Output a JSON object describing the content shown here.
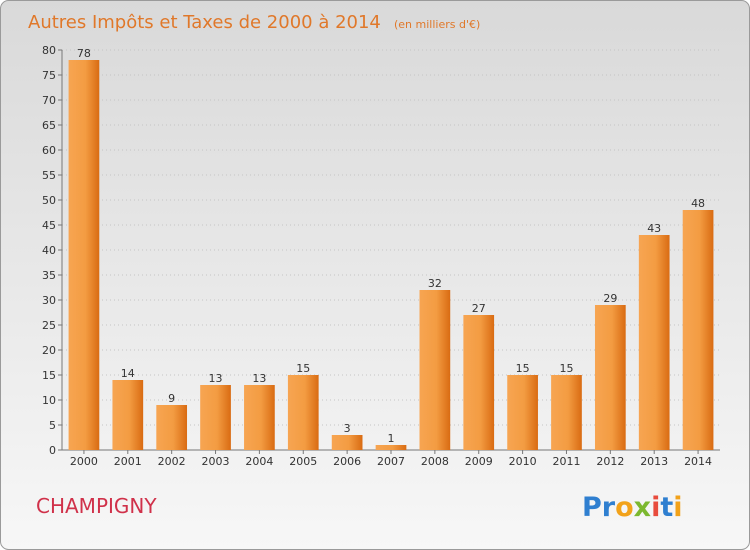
{
  "title": "Autres Impôts et Taxes de 2000 à 2014",
  "unit": "(en milliers d'€)",
  "city": "CHAMPIGNY",
  "logo": "Proxiti",
  "colors": {
    "background_top": "#d9d9d9",
    "background_bottom": "#f7f7f7",
    "bar_light": "#f7a552",
    "bar_dark": "#d96b12",
    "title": "#e0782a",
    "city": "#d0314a"
  },
  "chart_data": {
    "type": "bar",
    "title": "Autres Impôts et Taxes de 2000 à 2014",
    "subtitle": "(en milliers d'€)",
    "categories": [
      "2000",
      "2001",
      "2002",
      "2003",
      "2004",
      "2005",
      "2006",
      "2007",
      "2008",
      "2009",
      "2010",
      "2011",
      "2012",
      "2013",
      "2014"
    ],
    "values": [
      78,
      14,
      9,
      13,
      13,
      15,
      3,
      1,
      32,
      27,
      15,
      15,
      29,
      43,
      48
    ],
    "ylim": [
      0,
      80
    ],
    "yticks": [
      0,
      5,
      10,
      15,
      20,
      25,
      30,
      35,
      40,
      45,
      50,
      55,
      60,
      65,
      70,
      75,
      80
    ],
    "grid": true,
    "legend": "none"
  }
}
